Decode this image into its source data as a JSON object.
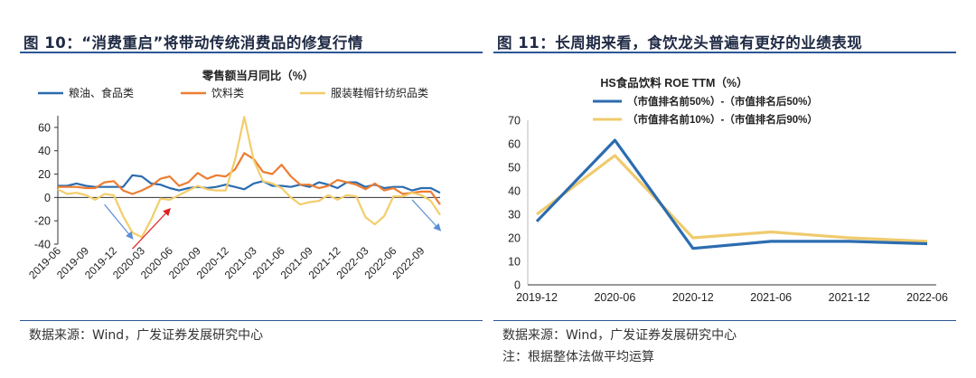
{
  "left": {
    "figure_title": "图 10：“消费重启”将带动传统消费品的修复行情",
    "source": "数据来源：Wind，广发证券发展研究中心",
    "chart_data": {
      "type": "line",
      "title": "零售额当月同比（%）",
      "xlabel": "",
      "ylabel": "",
      "ylim": [
        -40,
        70
      ],
      "yticks": [
        -40,
        -20,
        0,
        20,
        40,
        60
      ],
      "x": [
        "2019-06",
        "2019-07",
        "2019-08",
        "2019-09",
        "2019-10",
        "2019-11",
        "2019-12",
        "2020-01",
        "2020-02",
        "2020-03",
        "2020-04",
        "2020-05",
        "2020-06",
        "2020-07",
        "2020-08",
        "2020-09",
        "2020-10",
        "2020-11",
        "2020-12",
        "2021-01",
        "2021-02",
        "2021-03",
        "2021-04",
        "2021-05",
        "2021-06",
        "2021-07",
        "2021-08",
        "2021-09",
        "2021-10",
        "2021-11",
        "2021-12",
        "2022-01",
        "2022-02",
        "2022-03",
        "2022-04",
        "2022-05",
        "2022-06",
        "2022-07",
        "2022-08",
        "2022-09",
        "2022-10",
        "2022-11"
      ],
      "xtick_labels": [
        "2019-06",
        "2019-09",
        "2019-12",
        "2020-03",
        "2020-06",
        "2020-09",
        "2020-12",
        "2021-03",
        "2021-06",
        "2021-09",
        "2021-12",
        "2022-03",
        "2022-06",
        "2022-09"
      ],
      "grid": false,
      "legend_position": "top",
      "series": [
        {
          "name": "粮油、食品类",
          "color": "#2b6cb0",
          "values": [
            10,
            10,
            12,
            10,
            9,
            9,
            9,
            9,
            19,
            18,
            12,
            11,
            8,
            6,
            8,
            9,
            8,
            9,
            11,
            9,
            7,
            12,
            14,
            10,
            10,
            9,
            11,
            9,
            13,
            11,
            8,
            13,
            13,
            9,
            11,
            8,
            9,
            9,
            6,
            8,
            8,
            4
          ]
        },
        {
          "name": "饮料类",
          "color": "#ed7d31",
          "values": [
            9,
            9,
            9,
            8,
            8,
            13,
            14,
            6,
            3,
            6,
            10,
            16,
            18,
            10,
            13,
            21,
            16,
            19,
            18,
            24,
            38,
            33,
            22,
            20,
            28,
            18,
            11,
            11,
            8,
            10,
            15,
            13,
            11,
            7,
            12,
            6,
            8,
            3,
            4,
            5,
            5,
            -6
          ]
        },
        {
          "name": "服装鞋帽针纺织品类",
          "color": "#f3cd6b",
          "values": [
            7,
            3,
            4,
            2,
            -2,
            3,
            2,
            -16,
            -30,
            -34,
            -19,
            -1,
            -2,
            2,
            6,
            10,
            7,
            6,
            6,
            32,
            69,
            32,
            14,
            12,
            8,
            0,
            -6,
            -4,
            -3,
            2,
            -2,
            2,
            1,
            -17,
            -23,
            -16,
            1,
            1,
            4,
            2,
            -3,
            -15
          ]
        }
      ],
      "annotations": [
        {
          "type": "arrow",
          "color": "#5b8fd6",
          "from": "2019-11",
          "to": "2020-02"
        },
        {
          "type": "arrow",
          "color": "#e02020",
          "from": "2020-02",
          "to": "2020-06"
        },
        {
          "type": "arrow",
          "color": "#5b8fd6",
          "from": "2022-08",
          "to": "2022-11"
        }
      ]
    }
  },
  "right": {
    "figure_title": "图 11：长周期来看，食饮龙头普遍有更好的业绩表现",
    "source": "数据来源：Wind，广发证券发展研究中心",
    "note": "注：根据整体法做平均运算",
    "chart_data": {
      "type": "line",
      "title": "HS食品饮料 ROE TTM（%）",
      "xlabel": "",
      "ylabel": "",
      "ylim": [
        0,
        70
      ],
      "yticks": [
        0,
        10,
        20,
        30,
        40,
        50,
        60,
        70
      ],
      "x": [
        "2019-12",
        "2020-06",
        "2020-12",
        "2021-06",
        "2021-12",
        "2022-06"
      ],
      "grid": false,
      "legend_position": "top-left",
      "series": [
        {
          "name": "（市值排名前50%）-（市值排名后50%）",
          "color": "#2b6cb0",
          "values": [
            27,
            61.5,
            15.5,
            18.5,
            18.5,
            17.5
          ]
        },
        {
          "name": "（市值排名前10%）-（市值排名后90%）",
          "color": "#efcb6e",
          "values": [
            30,
            55,
            20,
            22.5,
            20,
            18.5
          ]
        }
      ]
    }
  }
}
